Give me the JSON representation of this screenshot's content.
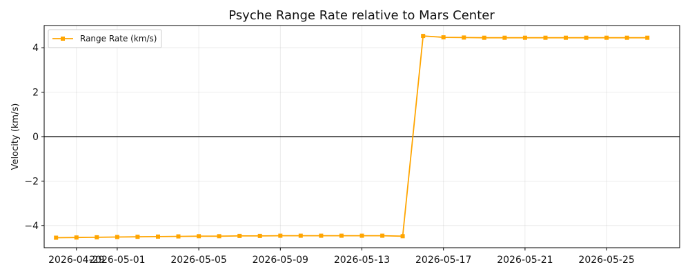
{
  "chart_data": {
    "type": "line",
    "title": "Psyche Range Rate relative to Mars Center",
    "xlabel": "",
    "ylabel": "Velocity (km/s)",
    "x_tick_labels": [
      "2026-04-29",
      "2026-05-01",
      "2026-05-05",
      "2026-05-09",
      "2026-05-13",
      "2026-05-17",
      "2026-05-21",
      "2026-05-25"
    ],
    "y_tick_labels": [
      "−4",
      "−2",
      "0",
      "2",
      "4"
    ],
    "ylim": [
      -5.0,
      5.0
    ],
    "xlim": [
      "2026-04-27T10:00",
      "2026-05-28T14:00"
    ],
    "grid": true,
    "legend_location": "upper left",
    "reference_line": {
      "y": 0,
      "color": "#000000"
    },
    "series": [
      {
        "name": "Range Rate (km/s)",
        "color": "#FFA500",
        "marker": "square",
        "x": [
          "2026-04-28",
          "2026-04-29",
          "2026-04-30",
          "2026-05-01",
          "2026-05-02",
          "2026-05-03",
          "2026-05-04",
          "2026-05-05",
          "2026-05-06",
          "2026-05-07",
          "2026-05-08",
          "2026-05-09",
          "2026-05-10",
          "2026-05-11",
          "2026-05-12",
          "2026-05-13",
          "2026-05-14",
          "2026-05-15",
          "2026-05-16",
          "2026-05-17",
          "2026-05-18",
          "2026-05-19",
          "2026-05-20",
          "2026-05-21",
          "2026-05-22",
          "2026-05-23",
          "2026-05-24",
          "2026-05-25",
          "2026-05-26",
          "2026-05-27"
        ],
        "values": [
          -4.55,
          -4.54,
          -4.53,
          -4.52,
          -4.51,
          -4.5,
          -4.49,
          -4.48,
          -4.48,
          -4.47,
          -4.47,
          -4.46,
          -4.46,
          -4.46,
          -4.46,
          -4.46,
          -4.46,
          -4.48,
          4.53,
          4.47,
          4.46,
          4.45,
          4.45,
          4.45,
          4.45,
          4.45,
          4.45,
          4.45,
          4.45,
          4.45
        ]
      }
    ]
  }
}
